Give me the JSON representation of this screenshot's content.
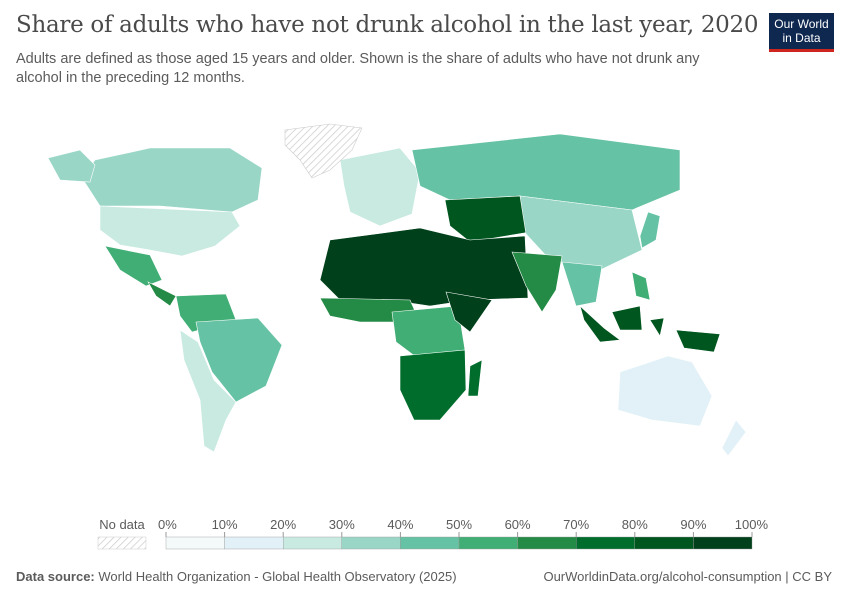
{
  "title": "Share of adults who have not drunk alcohol in the last year, 2020",
  "subtitle": "Adults are defined as those aged 15 years and older. Shown is the share of adults who have not drunk any alcohol in the preceding 12 months.",
  "logo": "Our World in Data",
  "legend": {
    "no_data_label": "No data",
    "ticks": [
      "0%",
      "10%",
      "20%",
      "30%",
      "40%",
      "50%",
      "60%",
      "70%",
      "80%",
      "90%",
      "100%"
    ],
    "colors": [
      "#f3faf9",
      "#e1f1f7",
      "#c8eae1",
      "#99d6c6",
      "#66c2a4",
      "#41ae76",
      "#238b45",
      "#006d2c",
      "#00561f",
      "#00401a"
    ]
  },
  "map": {
    "regions": [
      {
        "id": "canada",
        "bin": 3
      },
      {
        "id": "alaska",
        "bin": 3
      },
      {
        "id": "usa",
        "bin": 2
      },
      {
        "id": "mexico",
        "bin": 5
      },
      {
        "id": "central-america",
        "bin": 6
      },
      {
        "id": "northern-south-america",
        "bin": 5
      },
      {
        "id": "brazil",
        "bin": 4
      },
      {
        "id": "southern-south-america",
        "bin": 2
      },
      {
        "id": "europe",
        "bin": 2
      },
      {
        "id": "russia",
        "bin": 4
      },
      {
        "id": "central-asia",
        "bin": 8
      },
      {
        "id": "north-africa-middle-east",
        "bin": 9
      },
      {
        "id": "china",
        "bin": 3
      },
      {
        "id": "south-asia",
        "bin": 6
      },
      {
        "id": "southeast-asia",
        "bin": 4
      },
      {
        "id": "west-africa",
        "bin": 6
      },
      {
        "id": "central-africa",
        "bin": 5
      },
      {
        "id": "horn-of-africa",
        "bin": 9
      },
      {
        "id": "southern-africa",
        "bin": 7
      },
      {
        "id": "madagascar",
        "bin": 7
      },
      {
        "id": "indonesia",
        "bin": 8
      },
      {
        "id": "philippines",
        "bin": 5
      },
      {
        "id": "japan",
        "bin": 4
      },
      {
        "id": "australia",
        "bin": 1
      },
      {
        "id": "new-zealand",
        "bin": 1
      }
    ],
    "no_data_regions": [
      "greenland"
    ]
  },
  "footer": {
    "source_label": "Data source:",
    "source": "World Health Organization - Global Health Observatory (2025)",
    "url": "OurWorldinData.org/alcohol-consumption | CC BY"
  }
}
